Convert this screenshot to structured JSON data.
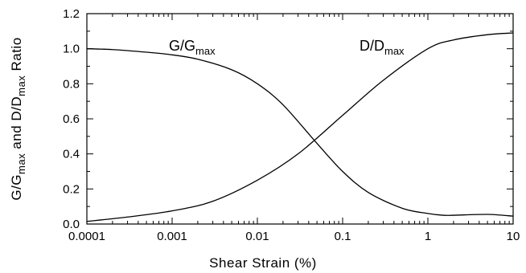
{
  "chart_data": {
    "type": "line",
    "title": "",
    "xlabel": "Shear Strain (%)",
    "ylabel": "G/Gmax and D/Dmax Ratio",
    "xscale": "log",
    "xlim": [
      0.0001,
      10
    ],
    "ylim": [
      0.0,
      1.2
    ],
    "grid": false,
    "x_ticks": [
      0.0001,
      0.001,
      0.01,
      0.1,
      1,
      10
    ],
    "x_tick_labels": [
      "0.0001",
      "0.001",
      "0.01",
      "0.1",
      "1",
      "10"
    ],
    "y_ticks": [
      0.0,
      0.2,
      0.4,
      0.6,
      0.8,
      1.0,
      1.2
    ],
    "y_tick_labels": [
      "0.0",
      "0.2",
      "0.4",
      "0.6",
      "0.8",
      "1.0",
      "1.2"
    ],
    "ylabel_parts": {
      "g": "G/G",
      "g_sub": "max",
      "mid": " and ",
      "d": "D/D",
      "d_sub": "max",
      "end": " Ratio"
    },
    "annotations": [
      {
        "id": "g",
        "main": "G/G",
        "sub": "max"
      },
      {
        "id": "d",
        "main": "D/D",
        "sub": "max"
      }
    ],
    "series": [
      {
        "id": "g",
        "x": [
          0.0001,
          0.0002,
          0.0005,
          0.001,
          0.002,
          0.005,
          0.01,
          0.02,
          0.05,
          0.1,
          0.2,
          0.5,
          1,
          1.5,
          2,
          5,
          10
        ],
        "y": [
          1.0,
          0.995,
          0.98,
          0.965,
          0.94,
          0.88,
          0.8,
          0.68,
          0.46,
          0.3,
          0.18,
          0.09,
          0.06,
          0.05,
          0.05,
          0.055,
          0.045
        ]
      },
      {
        "id": "d",
        "x": [
          0.0001,
          0.0003,
          0.001,
          0.003,
          0.01,
          0.03,
          0.1,
          0.3,
          1,
          2,
          5,
          10
        ],
        "y": [
          0.015,
          0.04,
          0.075,
          0.13,
          0.25,
          0.4,
          0.62,
          0.82,
          1.0,
          1.05,
          1.08,
          1.09
        ]
      }
    ]
  }
}
